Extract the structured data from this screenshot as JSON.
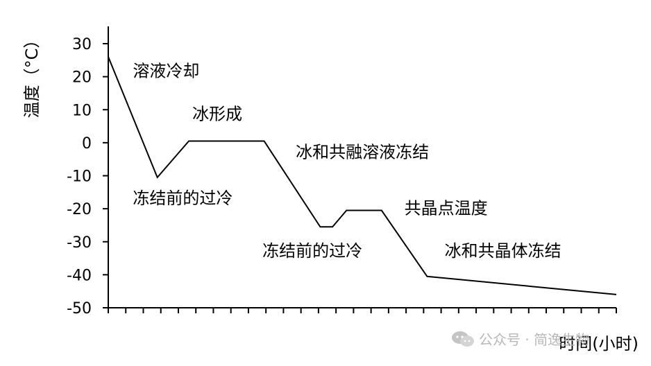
{
  "chart_data": {
    "type": "line",
    "title": "",
    "xlabel": "时间(小时)",
    "ylabel": "温度（°C）",
    "yticks": [
      30,
      20,
      10,
      0,
      -10,
      -20,
      -30,
      -40,
      -50
    ],
    "ylim": [
      -50,
      35
    ],
    "xlim": [
      0,
      29
    ],
    "x_tick_count": 29,
    "grid": false,
    "x": [
      0,
      2.8,
      4.6,
      8.9,
      12.1,
      12.8,
      13.6,
      15.6,
      18.2,
      29
    ],
    "y": [
      26,
      -10.5,
      0.5,
      0.5,
      -25.5,
      -25.5,
      -20.5,
      -20.5,
      -40.5,
      -46
    ],
    "annotations": [
      {
        "text": "溶液冷却",
        "x": 1.4,
        "y": 20
      },
      {
        "text": "冰形成",
        "x": 4.8,
        "y": 7
      },
      {
        "text": "冻结前的过冷",
        "x": 1.4,
        "y": -18.5
      },
      {
        "text": "冰和共融溶液冻结",
        "x": 10.7,
        "y": -4.5
      },
      {
        "text": "共晶点温度",
        "x": 16.9,
        "y": -21.5
      },
      {
        "text": "冻结前的过冷",
        "x": 8.8,
        "y": -34.5
      },
      {
        "text": "冰和共晶体冻结",
        "x": 19.2,
        "y": -34.5
      }
    ]
  },
  "watermark": {
    "icon": "wechat-icon",
    "text": "公众号 · 简逸生物"
  }
}
